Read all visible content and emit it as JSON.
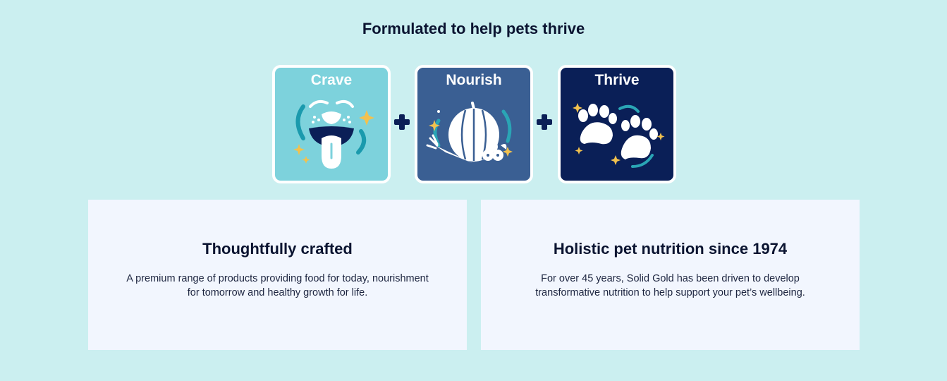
{
  "heading": "Formulated to help pets thrive",
  "steps": [
    {
      "label": "Crave",
      "icon": "dog-tongue-icon",
      "color": "#7dd2dc"
    },
    {
      "label": "Nourish",
      "icon": "pumpkin-vegetables-icon",
      "color": "#3a5f93"
    },
    {
      "label": "Thrive",
      "icon": "paw-prints-icon",
      "color": "#0a1f57"
    }
  ],
  "plus_icon": "plus-icon",
  "cards": [
    {
      "title": "Thoughtfully crafted",
      "body": "A premium range of products providing food for today, nourishment for tomorrow and healthy growth for life."
    },
    {
      "title": "Holistic pet nutrition since 1974",
      "body": "For over 45 years, Solid Gold has been driven to develop transformative nutrition to help support your pet’s wellbeing."
    }
  ],
  "colors": {
    "background": "#cbeff0",
    "card": "#f2f6fe",
    "navy": "#0b1f57",
    "sparkle": "#f2c14e",
    "teal": "#2aa5b5"
  }
}
